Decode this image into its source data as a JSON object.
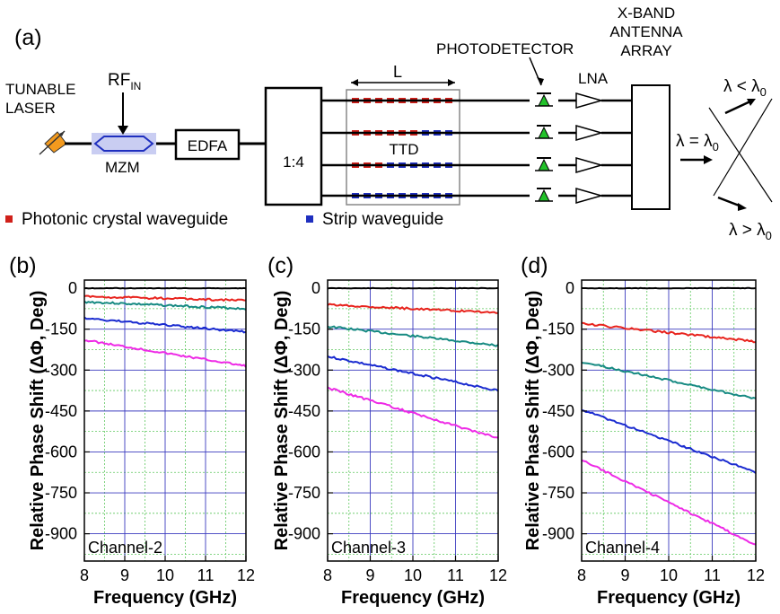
{
  "schematic": {
    "panel_label": "(a)",
    "tunable_laser": [
      "TUNABLE",
      "LASER"
    ],
    "rf_in": "RF",
    "rf_in_sub": "IN",
    "mzm": "MZM",
    "edfa": "EDFA",
    "splitter": "1:4",
    "length_label": "L",
    "ttd": "TTD",
    "photodetector": "PHOTODETECTOR",
    "lna": "LNA",
    "antenna": [
      "X-BAND",
      "ANTENNA",
      "ARRAY"
    ],
    "beam_lt": "λ < λ",
    "beam_lt_sub": "0",
    "beam_eq": "λ = λ",
    "beam_eq_sub": "0",
    "beam_gt": "λ > λ",
    "beam_gt_sub": "0",
    "legend": {
      "pc_label": "Photonic crystal waveguide",
      "pc_color": "#d0201a",
      "strip_label": "Strip waveguide",
      "strip_color": "#1f2fbf"
    },
    "ttd_rows": [
      {
        "red": 9,
        "blue": 0
      },
      {
        "red": 6,
        "blue": 3
      },
      {
        "red": 3,
        "blue": 6
      },
      {
        "red": 0,
        "blue": 9
      }
    ]
  },
  "chart_data": [
    {
      "type": "line",
      "panel_label": "(b)",
      "annotation": "Channel-2",
      "xlabel": "Frequency (GHz)",
      "ylabel": "Relative Phase Shift (ΔΦ, Deg)",
      "xlim": [
        8,
        12
      ],
      "ylim": [
        -1000,
        30
      ],
      "x_ticks": [
        8,
        9,
        10,
        11,
        12
      ],
      "y_ticks": [
        0,
        -150,
        -300,
        -450,
        -600,
        -750,
        -900
      ],
      "grid": true,
      "x": [
        8,
        12
      ],
      "series": [
        {
          "color": "#000000",
          "values": [
            0,
            0
          ]
        },
        {
          "color": "#e8231d",
          "values": [
            -30,
            -45
          ]
        },
        {
          "color": "#168a82",
          "values": [
            -50,
            -75
          ]
        },
        {
          "color": "#1a2bd0",
          "values": [
            -110,
            -160
          ]
        },
        {
          "color": "#ee2ae6",
          "values": [
            -190,
            -285
          ]
        }
      ]
    },
    {
      "type": "line",
      "panel_label": "(c)",
      "annotation": "Channel-3",
      "xlabel": "Frequency (GHz)",
      "ylabel": "Relative Phase Shift (ΔΦ, Deg)",
      "xlim": [
        8,
        12
      ],
      "ylim": [
        -1000,
        30
      ],
      "x_ticks": [
        8,
        9,
        10,
        11,
        12
      ],
      "y_ticks": [
        0,
        -150,
        -300,
        -450,
        -600,
        -750,
        -900
      ],
      "grid": true,
      "x": [
        8,
        12
      ],
      "series": [
        {
          "color": "#000000",
          "values": [
            0,
            0
          ]
        },
        {
          "color": "#e8231d",
          "values": [
            -60,
            -90
          ]
        },
        {
          "color": "#168a82",
          "values": [
            -140,
            -210
          ]
        },
        {
          "color": "#1a2bd0",
          "values": [
            -250,
            -375
          ]
        },
        {
          "color": "#ee2ae6",
          "values": [
            -365,
            -550
          ]
        }
      ]
    },
    {
      "type": "line",
      "panel_label": "(d)",
      "annotation": "Channel-4",
      "xlabel": "Frequency (GHz)",
      "ylabel": "Relative Phase Shift (ΔΦ, Deg)",
      "xlim": [
        8,
        12
      ],
      "ylim": [
        -1000,
        30
      ],
      "x_ticks": [
        8,
        9,
        10,
        11,
        12
      ],
      "y_ticks": [
        0,
        -150,
        -300,
        -450,
        -600,
        -750,
        -900
      ],
      "grid": true,
      "x": [
        8,
        12
      ],
      "series": [
        {
          "color": "#000000",
          "values": [
            0,
            0
          ]
        },
        {
          "color": "#e8231d",
          "values": [
            -130,
            -195
          ]
        },
        {
          "color": "#168a82",
          "values": [
            -270,
            -405
          ]
        },
        {
          "color": "#1a2bd0",
          "values": [
            -445,
            -675
          ]
        },
        {
          "color": "#ee2ae6",
          "values": [
            -630,
            -940
          ]
        }
      ]
    }
  ]
}
